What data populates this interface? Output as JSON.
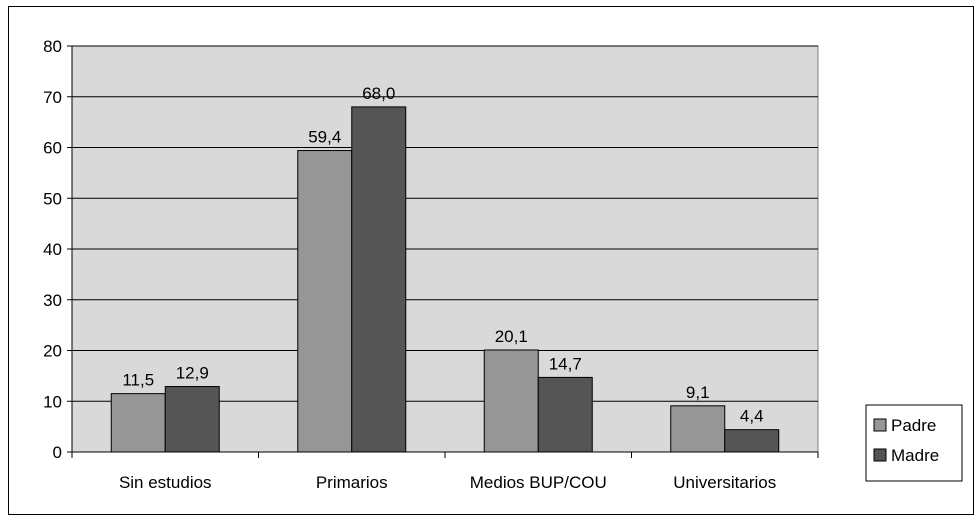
{
  "chart_data": {
    "type": "bar",
    "title": "",
    "xlabel": "",
    "ylabel": "",
    "categories": [
      "Sin estudios",
      "Primarios",
      "Medios BUP/COU",
      "Universitarios"
    ],
    "series": [
      {
        "name": "Padre",
        "values": [
          11.5,
          59.4,
          20.1,
          9.1
        ],
        "labels": [
          "11,5",
          "59,4",
          "20,1",
          "9,1"
        ],
        "color": "#969696"
      },
      {
        "name": "Madre",
        "values": [
          12.9,
          68.0,
          14.7,
          4.4
        ],
        "labels": [
          "12,9",
          "68,0",
          "14,7",
          "4,4"
        ],
        "color": "#555555"
      }
    ],
    "ylim": [
      0,
      80
    ],
    "yticks": [
      0,
      10,
      20,
      30,
      40,
      50,
      60,
      70,
      80
    ],
    "grid": true,
    "plot_background": "#d9d9d9",
    "legend": "right"
  }
}
